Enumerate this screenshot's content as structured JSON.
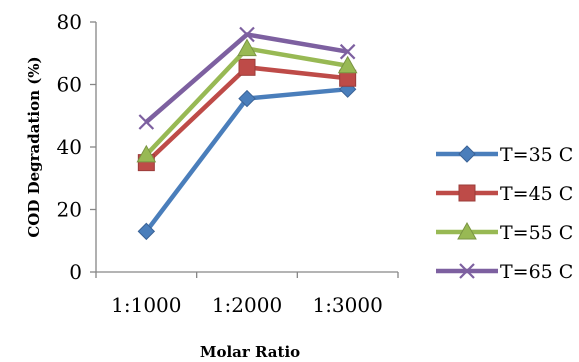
{
  "chart_data": {
    "type": "line",
    "categories": [
      "1:1000",
      "1:2000",
      "1:3000"
    ],
    "series": [
      {
        "name": "T=35 C",
        "values": [
          13,
          55.5,
          58.5
        ],
        "color": "#4A7EBB",
        "marker": "diamond"
      },
      {
        "name": "T=45 C",
        "values": [
          35,
          65.5,
          62
        ],
        "color": "#BE4B48",
        "marker": "square"
      },
      {
        "name": "T=55 C",
        "values": [
          37.5,
          71.5,
          66
        ],
        "color": "#98B954",
        "marker": "triangle"
      },
      {
        "name": "T=65 C",
        "values": [
          48,
          76,
          70.5
        ],
        "color": "#7D60A0",
        "marker": "x"
      }
    ],
    "xlabel": "Molar Ratio",
    "ylabel": "COD Degradation (%)",
    "ylim": [
      0,
      80
    ],
    "yticks": [
      0,
      20,
      40,
      60,
      80
    ],
    "grid": false,
    "legend": "right"
  }
}
